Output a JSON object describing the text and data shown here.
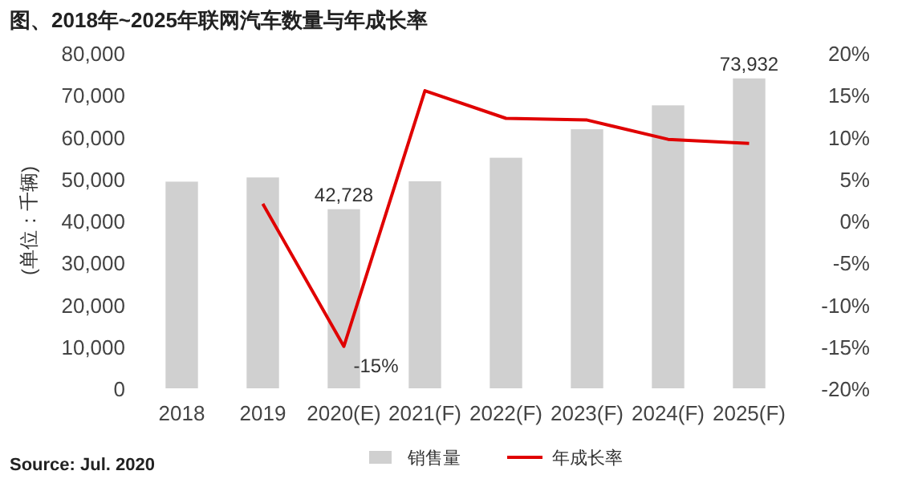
{
  "chart_data": {
    "type": "bar",
    "title": "图、2018年~2025年联网汽车数量与年成长率",
    "ylabel": "(单位：千辆)",
    "categories": [
      "2018",
      "2019",
      "2020(E)",
      "2021(F)",
      "2022(F)",
      "2023(F)",
      "2024(F)",
      "2025(F)"
    ],
    "series": [
      {
        "name": "销售量",
        "color": "#d0d0d0",
        "values": [
          49300,
          50300,
          42728,
          49400,
          55000,
          61800,
          67500,
          73932
        ],
        "value_labels": [
          null,
          null,
          "42,728",
          null,
          null,
          null,
          null,
          "73,932"
        ]
      },
      {
        "name": "年成长率",
        "type": "line",
        "axis": "y2",
        "color": "#e00000",
        "values": [
          null,
          2,
          -15,
          15.5,
          12.2,
          12,
          9.7,
          9.2
        ],
        "value_labels": [
          null,
          null,
          "-15%",
          null,
          null,
          null,
          null,
          null
        ]
      }
    ],
    "ylim": [
      0,
      80000
    ],
    "yticks": [
      0,
      {
        "value": 10000,
        "label": "10,000"
      },
      {
        "value": 20000,
        "label": "20,000"
      },
      {
        "value": 30000,
        "label": "30,000"
      },
      {
        "value": 40000,
        "label": "40,000"
      },
      {
        "value": 50000,
        "label": "50,000"
      },
      {
        "value": 60000,
        "label": "60,000"
      },
      {
        "value": 70000,
        "label": "70,000"
      },
      {
        "value": 80000,
        "label": "80,000"
      }
    ],
    "y2lim": [
      -20,
      20
    ],
    "y2ticks": [
      {
        "value": -20,
        "label": "-20%"
      },
      {
        "value": -15,
        "label": "-15%"
      },
      {
        "value": -10,
        "label": "-10%"
      },
      {
        "value": -5,
        "label": "-5%"
      },
      {
        "value": 0,
        "label": "0%"
      },
      {
        "value": 5,
        "label": "5%"
      },
      {
        "value": 10,
        "label": "10%"
      },
      {
        "value": 15,
        "label": "15%"
      },
      {
        "value": 20,
        "label": "20%"
      }
    ],
    "legend": "bottom",
    "annotations": [
      "Source: Jul. 2020"
    ]
  }
}
